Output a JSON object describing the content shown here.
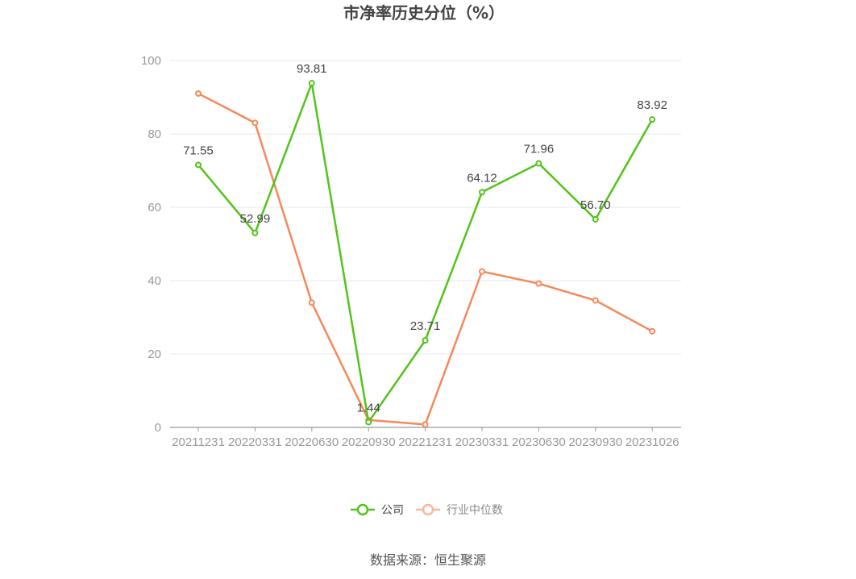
{
  "chart_data": {
    "type": "line",
    "title": "市净率历史分位（%）",
    "xlabel": "",
    "ylabel": "",
    "ylim": [
      0,
      100
    ],
    "yticks": [
      "0",
      "20",
      "40",
      "60",
      "80",
      "100"
    ],
    "categories": [
      "20211231",
      "20220331",
      "20220630",
      "20220930",
      "20221231",
      "20230331",
      "20230630",
      "20230930",
      "20231026"
    ],
    "grid": true,
    "legend_position": "bottom",
    "series": [
      {
        "name": "公司",
        "color": "#52c41a",
        "values": [
          71.55,
          52.99,
          93.81,
          1.44,
          23.71,
          64.12,
          71.96,
          56.7,
          83.92
        ],
        "labels": [
          "71.55",
          "52.99",
          "93.81",
          "1.44",
          "23.71",
          "64.12",
          "71.96",
          "56.70",
          "83.92"
        ]
      },
      {
        "name": "行业中位数",
        "color": "#f5895a",
        "values": [
          91.0,
          83.0,
          34.0,
          2.0,
          0.8,
          42.5,
          39.2,
          34.6,
          26.2
        ]
      }
    ],
    "source": "数据来源：恒生聚源"
  }
}
